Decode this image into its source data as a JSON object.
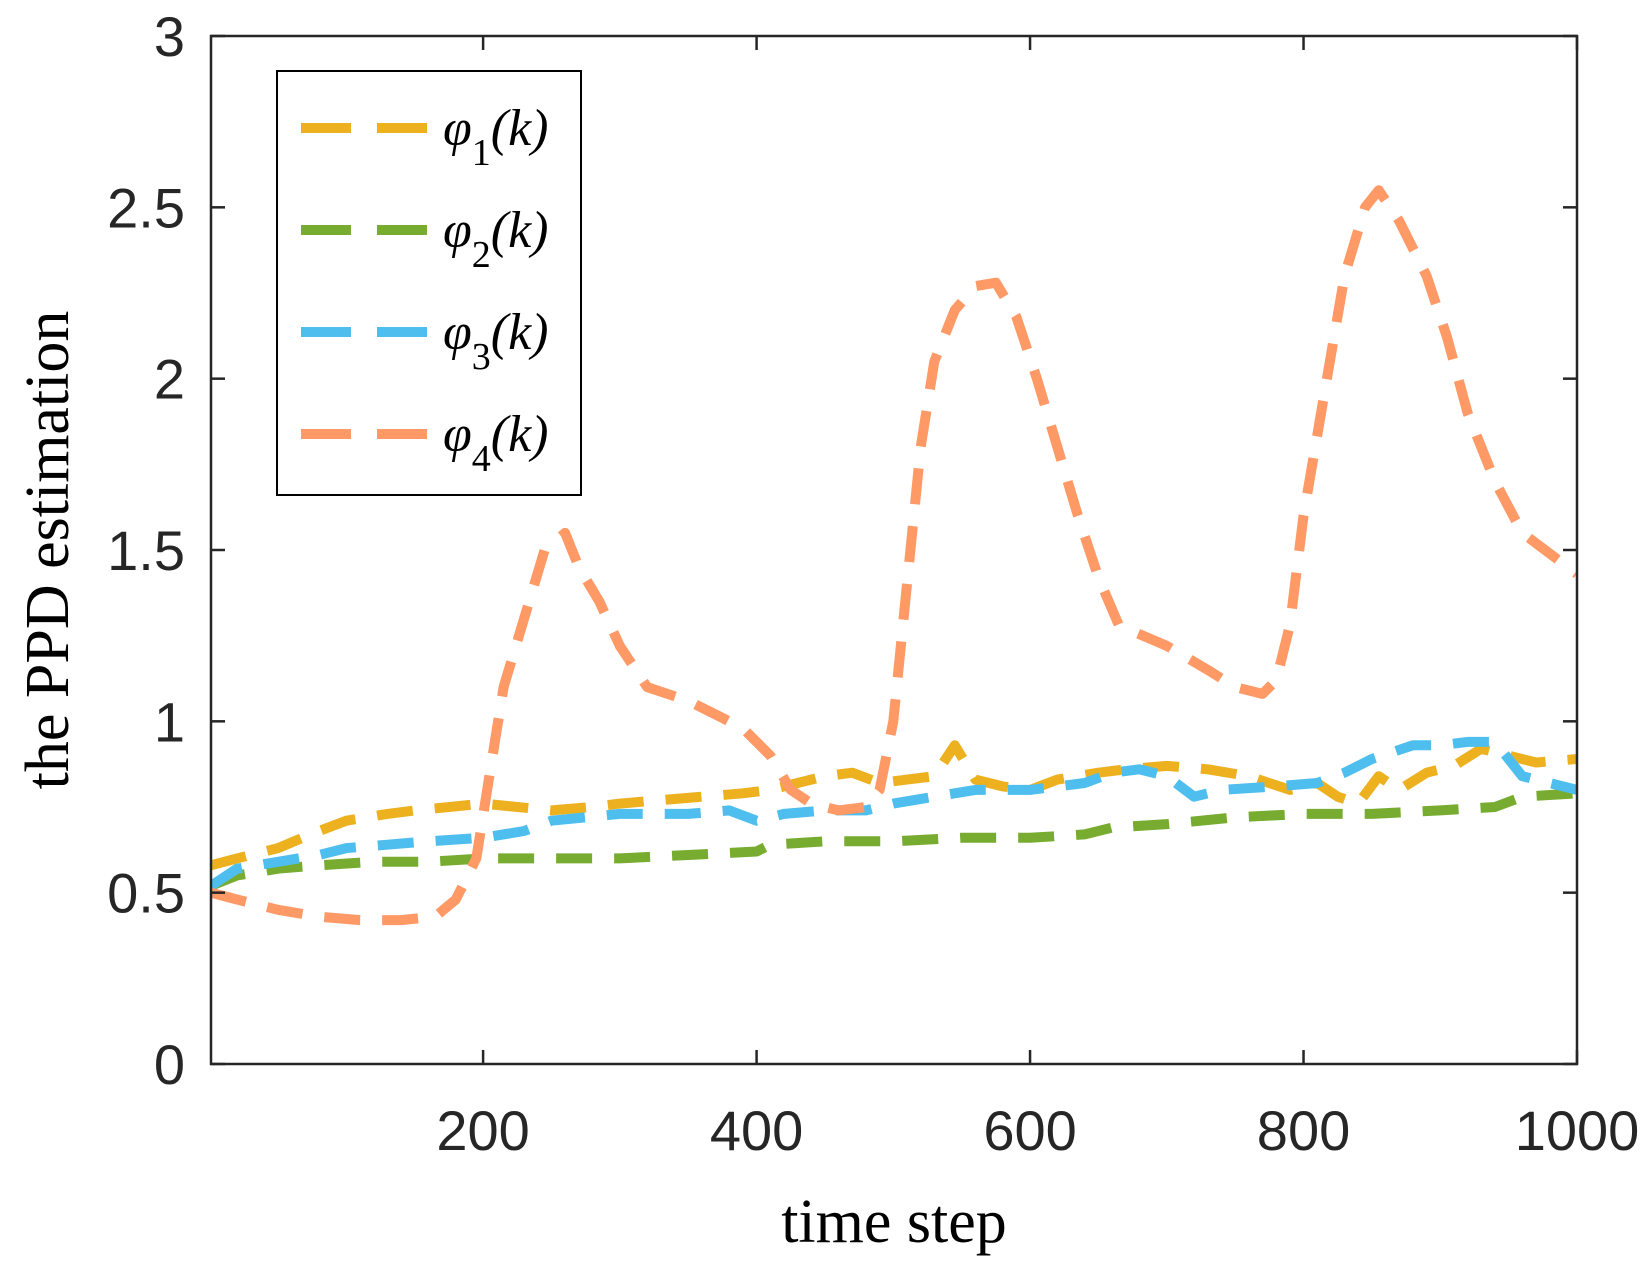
{
  "chart_data": {
    "type": "line",
    "xlabel": "time step",
    "ylabel": "the PPD estimation",
    "xlim": [
      1,
      1000
    ],
    "ylim": [
      0,
      3
    ],
    "x_ticks": [
      200,
      400,
      600,
      800,
      1000
    ],
    "y_ticks": [
      0,
      0.5,
      1,
      1.5,
      2,
      2.5,
      3
    ],
    "x_tick_labels": [
      "200",
      "400",
      "600",
      "800",
      "1000"
    ],
    "y_tick_labels": [
      "0",
      "0.5",
      "1",
      "1.5",
      "2",
      "2.5",
      "3"
    ],
    "legend_position": "top-left",
    "series": [
      {
        "name": "φ1(k)",
        "symbol": "φ",
        "subscript": "1",
        "arg": "(k)",
        "color": "#EDB120",
        "x": [
          1,
          20,
          50,
          80,
          100,
          130,
          150,
          200,
          250,
          280,
          300,
          330,
          360,
          390,
          410,
          430,
          450,
          470,
          490,
          510,
          530,
          545,
          560,
          580,
          600,
          620,
          650,
          670,
          700,
          730,
          760,
          790,
          810,
          825,
          840,
          855,
          870,
          890,
          910,
          930,
          950,
          970,
          1000
        ],
        "values": [
          0.58,
          0.6,
          0.63,
          0.68,
          0.71,
          0.73,
          0.74,
          0.76,
          0.74,
          0.75,
          0.76,
          0.77,
          0.78,
          0.79,
          0.8,
          0.82,
          0.84,
          0.85,
          0.82,
          0.83,
          0.84,
          0.93,
          0.83,
          0.81,
          0.8,
          0.83,
          0.85,
          0.86,
          0.87,
          0.86,
          0.84,
          0.8,
          0.82,
          0.78,
          0.76,
          0.84,
          0.8,
          0.85,
          0.87,
          0.92,
          0.9,
          0.88,
          0.89
        ]
      },
      {
        "name": "φ2(k)",
        "symbol": "φ",
        "subscript": "2",
        "arg": "(k)",
        "color": "#77AC30",
        "x": [
          1,
          20,
          50,
          80,
          120,
          160,
          200,
          250,
          300,
          350,
          400,
          410,
          450,
          500,
          550,
          600,
          640,
          660,
          700,
          750,
          800,
          850,
          900,
          940,
          960,
          1000
        ],
        "values": [
          0.52,
          0.55,
          0.57,
          0.58,
          0.59,
          0.59,
          0.6,
          0.6,
          0.6,
          0.61,
          0.62,
          0.64,
          0.65,
          0.65,
          0.66,
          0.66,
          0.67,
          0.69,
          0.7,
          0.72,
          0.73,
          0.73,
          0.74,
          0.75,
          0.78,
          0.79
        ]
      },
      {
        "name": "φ3(k)",
        "symbol": "φ",
        "subscript": "3",
        "arg": "(k)",
        "color": "#4DBEEE",
        "x": [
          1,
          20,
          50,
          80,
          100,
          130,
          160,
          200,
          230,
          250,
          300,
          350,
          380,
          400,
          420,
          450,
          480,
          500,
          530,
          560,
          600,
          640,
          660,
          680,
          700,
          720,
          740,
          780,
          810,
          830,
          850,
          880,
          900,
          920,
          940,
          960,
          1000
        ],
        "values": [
          0.52,
          0.57,
          0.59,
          0.61,
          0.63,
          0.64,
          0.65,
          0.66,
          0.68,
          0.71,
          0.73,
          0.73,
          0.74,
          0.71,
          0.73,
          0.74,
          0.74,
          0.76,
          0.78,
          0.8,
          0.8,
          0.82,
          0.85,
          0.86,
          0.84,
          0.78,
          0.8,
          0.81,
          0.82,
          0.85,
          0.89,
          0.93,
          0.93,
          0.94,
          0.94,
          0.84,
          0.8
        ]
      },
      {
        "name": "φ4(k)",
        "symbol": "φ",
        "subscript": "4",
        "arg": "(k)",
        "color": "#FF9966",
        "x": [
          1,
          20,
          50,
          80,
          110,
          140,
          165,
          180,
          195,
          205,
          215,
          230,
          245,
          260,
          270,
          285,
          300,
          320,
          350,
          370,
          390,
          410,
          425,
          440,
          460,
          480,
          490,
          500,
          510,
          520,
          530,
          545,
          560,
          575,
          590,
          605,
          620,
          635,
          650,
          665,
          700,
          730,
          750,
          770,
          780,
          790,
          800,
          815,
          830,
          845,
          855,
          870,
          890,
          905,
          920,
          940,
          960,
          1000
        ],
        "values": [
          0.5,
          0.48,
          0.45,
          0.43,
          0.42,
          0.42,
          0.43,
          0.48,
          0.6,
          0.85,
          1.1,
          1.3,
          1.5,
          1.55,
          1.45,
          1.35,
          1.22,
          1.1,
          1.06,
          1.02,
          0.98,
          0.9,
          0.8,
          0.76,
          0.74,
          0.75,
          0.8,
          1.0,
          1.4,
          1.8,
          2.05,
          2.2,
          2.27,
          2.28,
          2.18,
          2.0,
          1.8,
          1.6,
          1.42,
          1.28,
          1.22,
          1.15,
          1.1,
          1.08,
          1.12,
          1.28,
          1.6,
          1.95,
          2.3,
          2.5,
          2.55,
          2.46,
          2.3,
          2.12,
          1.9,
          1.7,
          1.55,
          1.43
        ]
      }
    ]
  }
}
